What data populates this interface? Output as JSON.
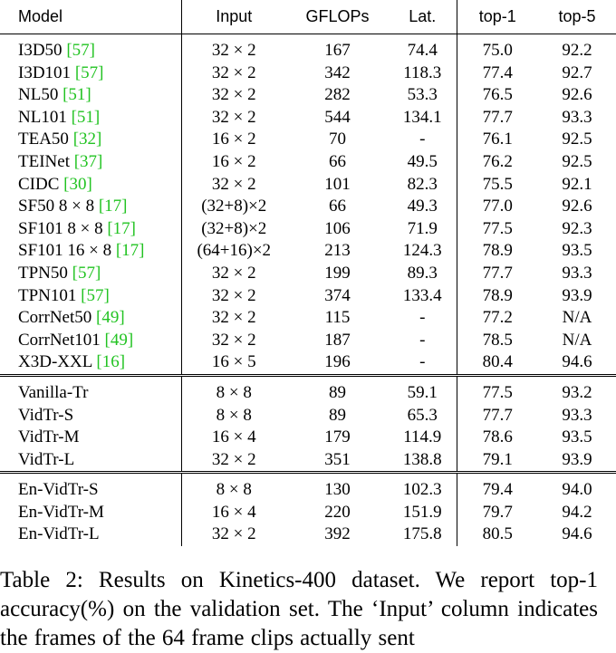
{
  "table": {
    "headers": {
      "model": "Model",
      "input": "Input",
      "gflops": "GFLOPs",
      "lat": "Lat.",
      "top1": "top-1",
      "top5": "top-5"
    },
    "groups": [
      {
        "rows": [
          {
            "model": "I3D50",
            "ref": "[57]",
            "input": "32 × 2",
            "gflops": "167",
            "lat": "74.4",
            "top1": "75.0",
            "top5": "92.2"
          },
          {
            "model": "I3D101",
            "ref": "[57]",
            "input": "32 × 2",
            "gflops": "342",
            "lat": "118.3",
            "top1": "77.4",
            "top5": "92.7"
          },
          {
            "model": "NL50",
            "ref": "[51]",
            "input": "32 × 2",
            "gflops": "282",
            "lat": "53.3",
            "top1": "76.5",
            "top5": "92.6"
          },
          {
            "model": "NL101",
            "ref": "[51]",
            "input": "32 × 2",
            "gflops": "544",
            "lat": "134.1",
            "top1": "77.7",
            "top5": "93.3"
          },
          {
            "model": "TEA50",
            "ref": "[32]",
            "input": "16 × 2",
            "gflops": "70",
            "lat": "-",
            "top1": "76.1",
            "top5": "92.5"
          },
          {
            "model": "TEINet",
            "ref": "[37]",
            "input": "16 × 2",
            "gflops": "66",
            "lat": "49.5",
            "top1": "76.2",
            "top5": "92.5"
          },
          {
            "model": "CIDC",
            "ref": "[30]",
            "input": "32 × 2",
            "gflops": "101",
            "lat": "82.3",
            "top1": "75.5",
            "top5": "92.1"
          },
          {
            "model": "SF50 8 × 8",
            "ref": "[17]",
            "input": "(32+8)×2",
            "gflops": "66",
            "lat": "49.3",
            "top1": "77.0",
            "top5": "92.6"
          },
          {
            "model": "SF101 8 × 8",
            "ref": "[17]",
            "input": "(32+8)×2",
            "gflops": "106",
            "lat": "71.9",
            "top1": "77.5",
            "top5": "92.3"
          },
          {
            "model": "SF101 16 × 8",
            "ref": "[17]",
            "input": "(64+16)×2",
            "gflops": "213",
            "lat": "124.3",
            "top1": "78.9",
            "top5": "93.5"
          },
          {
            "model": "TPN50",
            "ref": "[57]",
            "input": "32 × 2",
            "gflops": "199",
            "lat": "89.3",
            "top1": "77.7",
            "top5": "93.3"
          },
          {
            "model": "TPN101",
            "ref": "[57]",
            "input": "32 × 2",
            "gflops": "374",
            "lat": "133.4",
            "top1": "78.9",
            "top5": "93.9"
          },
          {
            "model": "CorrNet50",
            "ref": "[49]",
            "input": "32 × 2",
            "gflops": "115",
            "lat": "-",
            "top1": "77.2",
            "top5": "N/A"
          },
          {
            "model": "CorrNet101",
            "ref": "[49]",
            "input": "32 × 2",
            "gflops": "187",
            "lat": "-",
            "top1": "78.5",
            "top5": "N/A"
          },
          {
            "model": "X3D-XXL",
            "ref": "[16]",
            "input": "16 × 5",
            "gflops": "196",
            "lat": "-",
            "top1": "80.4",
            "top5": "94.6"
          }
        ]
      },
      {
        "rows": [
          {
            "model": "Vanilla-Tr",
            "ref": "",
            "input": "8 × 8",
            "gflops": "89",
            "lat": "59.1",
            "top1": "77.5",
            "top5": "93.2"
          },
          {
            "model": "VidTr-S",
            "ref": "",
            "input": "8 × 8",
            "gflops": "89",
            "lat": "65.3",
            "top1": "77.7",
            "top5": "93.3"
          },
          {
            "model": "VidTr-M",
            "ref": "",
            "input": "16 × 4",
            "gflops": "179",
            "lat": "114.9",
            "top1": "78.6",
            "top5": "93.5"
          },
          {
            "model": "VidTr-L",
            "ref": "",
            "input": "32 × 2",
            "gflops": "351",
            "lat": "138.8",
            "top1": "79.1",
            "top5": "93.9"
          }
        ]
      },
      {
        "rows": [
          {
            "model": "En-VidTr-S",
            "ref": "",
            "input": "8 × 8",
            "gflops": "130",
            "lat": "102.3",
            "top1": "79.4",
            "top5": "94.0"
          },
          {
            "model": "En-VidTr-M",
            "ref": "",
            "input": "16 × 4",
            "gflops": "220",
            "lat": "151.9",
            "top1": "79.7",
            "top5": "94.2"
          },
          {
            "model": "En-VidTr-L",
            "ref": "",
            "input": "32 × 2",
            "gflops": "392",
            "lat": "175.8",
            "top1": "80.5",
            "top5": "94.6"
          }
        ]
      }
    ]
  },
  "caption": {
    "text": "Table 2: Results on Kinetics-400 dataset. We report top-1 accuracy(%) on the validation set. The ‘Input’ column indicates the frames of the 64 frame clips actually sent"
  },
  "colors": {
    "citation": "#22c322",
    "text": "#000000",
    "background": "#ffffff"
  }
}
